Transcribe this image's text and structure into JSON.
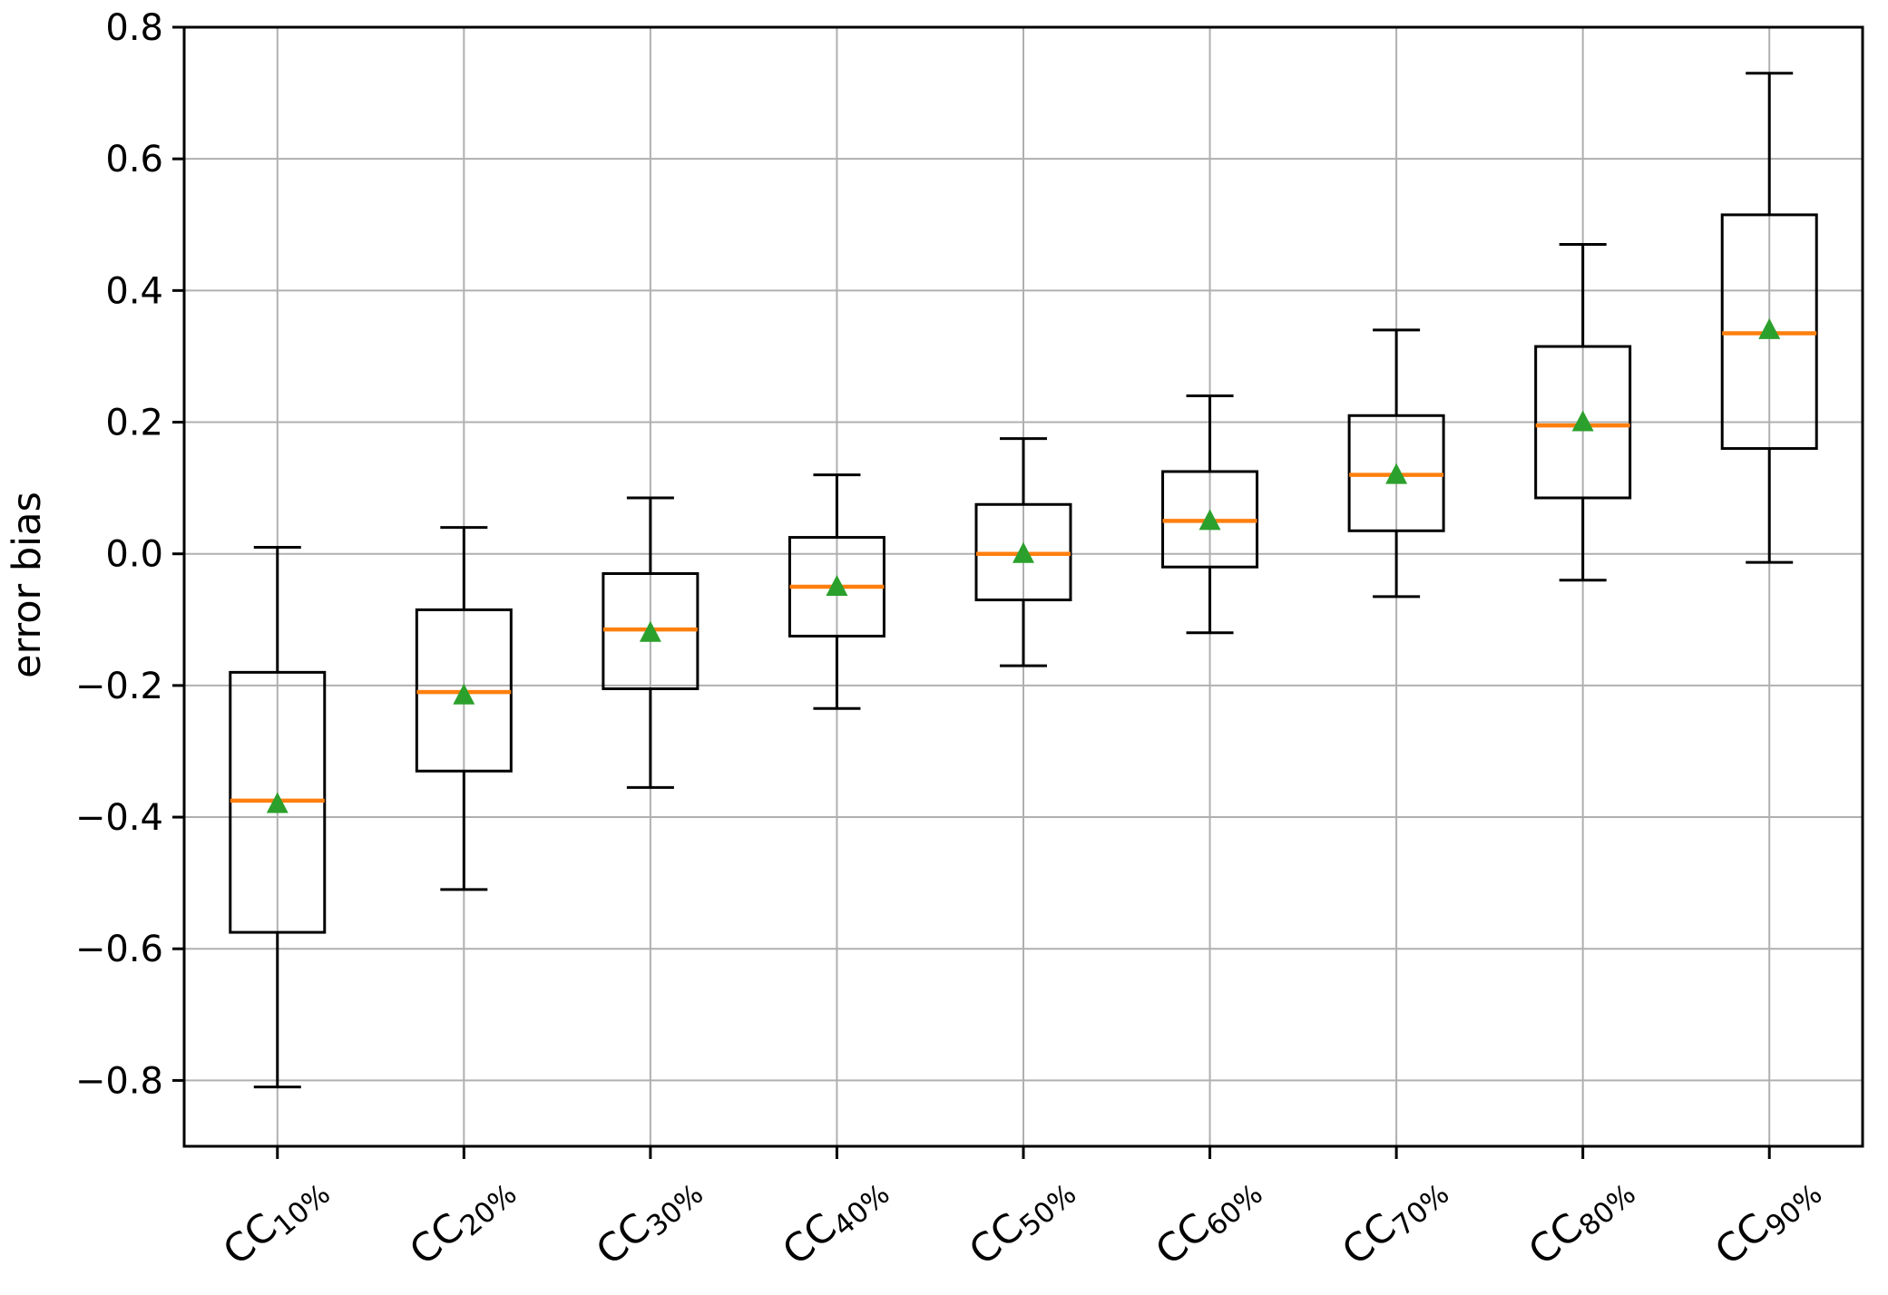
{
  "chart_data": {
    "type": "boxplot",
    "title": "",
    "xlabel": "",
    "ylabel": "error bias",
    "ylim": [
      -0.9,
      0.8
    ],
    "grid": true,
    "legend_position": "none",
    "colors": {
      "box": "#000000",
      "whisker": "#000000",
      "median": "#ff7f0e",
      "mean_marker": "#2ca02c",
      "grid": "#b0b0b0",
      "spine": "#000000",
      "background": "#ffffff"
    },
    "yticks": [
      {
        "value": 0.8,
        "label": "0.8"
      },
      {
        "value": 0.6,
        "label": "0.6"
      },
      {
        "value": 0.4,
        "label": "0.4"
      },
      {
        "value": 0.2,
        "label": "0.2"
      },
      {
        "value": 0.0,
        "label": "0.0"
      },
      {
        "value": -0.2,
        "label": "−0.2"
      },
      {
        "value": -0.4,
        "label": "−0.4"
      },
      {
        "value": -0.6,
        "label": "−0.6"
      },
      {
        "value": -0.8,
        "label": "−0.8"
      }
    ],
    "categories": [
      {
        "label": "CC10%",
        "prefix": "CC",
        "sub": "10%"
      },
      {
        "label": "CC20%",
        "prefix": "CC",
        "sub": "20%"
      },
      {
        "label": "CC30%",
        "prefix": "CC",
        "sub": "30%"
      },
      {
        "label": "CC40%",
        "prefix": "CC",
        "sub": "40%"
      },
      {
        "label": "CC50%",
        "prefix": "CC",
        "sub": "50%"
      },
      {
        "label": "CC60%",
        "prefix": "CC",
        "sub": "60%"
      },
      {
        "label": "CC70%",
        "prefix": "CC",
        "sub": "70%"
      },
      {
        "label": "CC80%",
        "prefix": "CC",
        "sub": "80%"
      },
      {
        "label": "CC90%",
        "prefix": "CC",
        "sub": "90%"
      }
    ],
    "boxes": [
      {
        "whislo": -0.81,
        "q1": -0.575,
        "med": -0.375,
        "mean": -0.38,
        "q3": -0.18,
        "whishi": 0.01
      },
      {
        "whislo": -0.51,
        "q1": -0.33,
        "med": -0.21,
        "mean": -0.215,
        "q3": -0.085,
        "whishi": 0.04
      },
      {
        "whislo": -0.355,
        "q1": -0.205,
        "med": -0.115,
        "mean": -0.12,
        "q3": -0.03,
        "whishi": 0.085
      },
      {
        "whislo": -0.235,
        "q1": -0.125,
        "med": -0.05,
        "mean": -0.05,
        "q3": 0.025,
        "whishi": 0.12
      },
      {
        "whislo": -0.17,
        "q1": -0.07,
        "med": 0.0,
        "mean": 0.0,
        "q3": 0.075,
        "whishi": 0.175
      },
      {
        "whislo": -0.12,
        "q1": -0.02,
        "med": 0.05,
        "mean": 0.05,
        "q3": 0.125,
        "whishi": 0.24
      },
      {
        "whislo": -0.065,
        "q1": 0.035,
        "med": 0.12,
        "mean": 0.12,
        "q3": 0.21,
        "whishi": 0.34
      },
      {
        "whislo": -0.04,
        "q1": 0.085,
        "med": 0.195,
        "mean": 0.2,
        "q3": 0.315,
        "whishi": 0.47
      },
      {
        "whislo": -0.013,
        "q1": 0.16,
        "med": 0.335,
        "mean": 0.34,
        "q3": 0.515,
        "whishi": 0.73
      }
    ]
  }
}
